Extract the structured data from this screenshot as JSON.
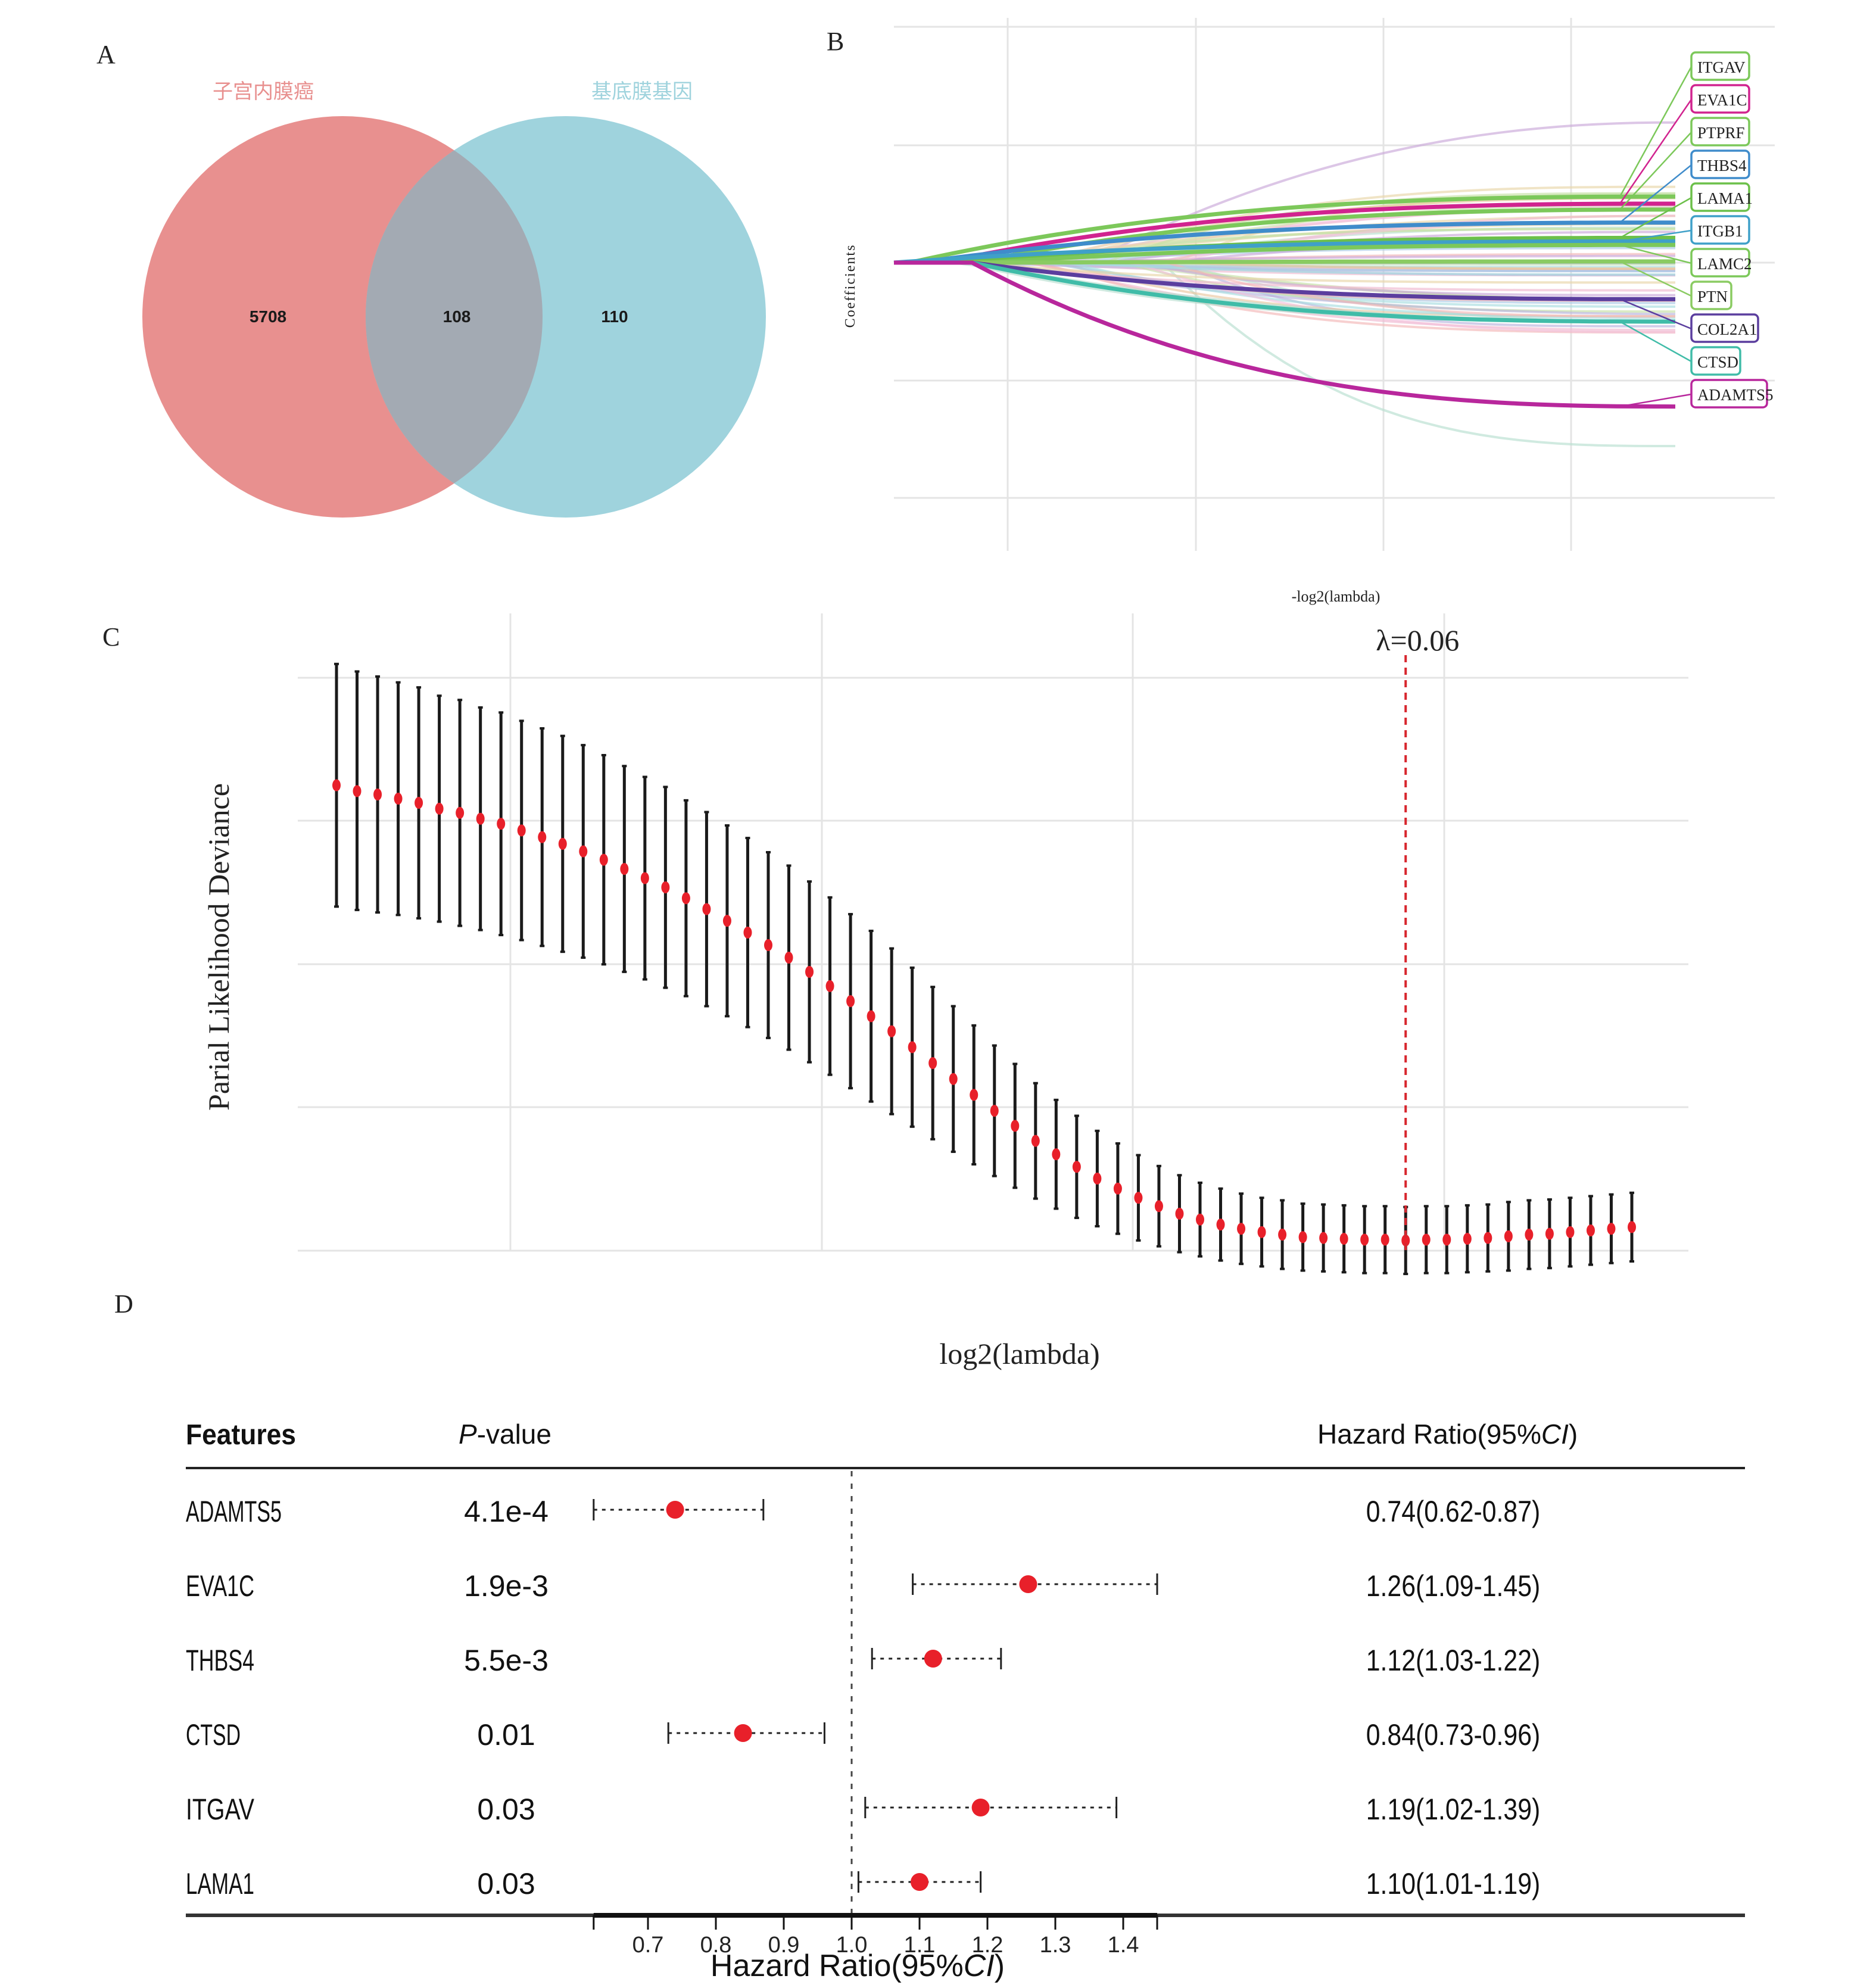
{
  "panels": {
    "a": {
      "label": "A"
    },
    "b": {
      "label": "B"
    },
    "c": {
      "label": "C"
    },
    "d": {
      "label": "D"
    }
  },
  "chart_data": [
    {
      "id": "A",
      "type": "venn",
      "sets": [
        {
          "name": "子宫内膜癌",
          "color": "#E8908F",
          "only": 5708
        },
        {
          "name": "基底膜基因",
          "color": "#9FD3DD",
          "only": 110
        }
      ],
      "intersection": 108,
      "intersection_color": "#A3AAB3"
    },
    {
      "id": "B",
      "type": "line",
      "title": "",
      "xlabel": "-log2(lambda)",
      "ylabel": "Coefficients",
      "grid": true,
      "labels_position": "right",
      "highlighted_genes": [
        {
          "name": "ITGAV",
          "color": "#7CC85A",
          "end": 0.56
        },
        {
          "name": "EVA1C",
          "color": "#D1238F",
          "end": 0.5
        },
        {
          "name": "PTPRF",
          "color": "#7CC85A",
          "end": 0.45
        },
        {
          "name": "THBS4",
          "color": "#3F8CCB",
          "end": 0.34
        },
        {
          "name": "LAMA1",
          "color": "#6CC04A",
          "end": 0.21
        },
        {
          "name": "ITGB1",
          "color": "#3FA0C8",
          "end": 0.18
        },
        {
          "name": "LAMC2",
          "color": "#7CC85A",
          "end": 0.15
        },
        {
          "name": "PTN",
          "color": "#8ACB62",
          "end": 0.01
        },
        {
          "name": "COL2A1",
          "color": "#5B3E9E",
          "end": -0.31
        },
        {
          "name": "CTSD",
          "color": "#40BCA8",
          "end": -0.5
        },
        {
          "name": "ADAMTS5",
          "color": "#B8279C",
          "end": -1.22
        }
      ]
    },
    {
      "id": "C",
      "type": "errorbar",
      "xlabel": "log2(lambda)",
      "ylabel": "Parial Likelihood Deviance",
      "grid": true,
      "annotation": "λ=0.06",
      "vline_index": 52,
      "point_color": "#E8202A",
      "y_relative": {
        "mean": [
          0.69,
          0.683,
          0.679,
          0.674,
          0.669,
          0.662,
          0.657,
          0.65,
          0.644,
          0.636,
          0.628,
          0.62,
          0.611,
          0.601,
          0.59,
          0.579,
          0.568,
          0.555,
          0.542,
          0.528,
          0.514,
          0.499,
          0.484,
          0.467,
          0.45,
          0.432,
          0.414,
          0.396,
          0.377,
          0.358,
          0.339,
          0.32,
          0.301,
          0.283,
          0.265,
          0.249,
          0.234,
          0.22,
          0.208,
          0.197,
          0.187,
          0.178,
          0.171,
          0.165,
          0.16,
          0.156,
          0.153,
          0.15,
          0.149,
          0.148,
          0.147,
          0.147,
          0.146,
          0.147,
          0.147,
          0.148,
          0.149,
          0.151,
          0.153,
          0.154,
          0.156,
          0.158,
          0.16,
          0.162
        ],
        "lower": [
          0.545,
          0.541,
          0.538,
          0.535,
          0.531,
          0.527,
          0.522,
          0.517,
          0.511,
          0.505,
          0.498,
          0.491,
          0.484,
          0.476,
          0.467,
          0.458,
          0.448,
          0.438,
          0.426,
          0.414,
          0.401,
          0.388,
          0.374,
          0.359,
          0.344,
          0.328,
          0.312,
          0.297,
          0.282,
          0.267,
          0.252,
          0.237,
          0.223,
          0.209,
          0.196,
          0.184,
          0.173,
          0.163,
          0.154,
          0.146,
          0.139,
          0.132,
          0.127,
          0.122,
          0.118,
          0.115,
          0.112,
          0.11,
          0.109,
          0.108,
          0.107,
          0.107,
          0.106,
          0.107,
          0.107,
          0.108,
          0.109,
          0.11,
          0.112,
          0.113,
          0.115,
          0.117,
          0.119,
          0.121
        ],
        "upper": [
          0.835,
          0.826,
          0.82,
          0.813,
          0.807,
          0.797,
          0.792,
          0.783,
          0.777,
          0.767,
          0.758,
          0.749,
          0.738,
          0.726,
          0.713,
          0.7,
          0.688,
          0.672,
          0.658,
          0.642,
          0.627,
          0.61,
          0.594,
          0.575,
          0.556,
          0.536,
          0.516,
          0.495,
          0.472,
          0.449,
          0.426,
          0.403,
          0.379,
          0.357,
          0.334,
          0.314,
          0.295,
          0.277,
          0.262,
          0.248,
          0.235,
          0.224,
          0.215,
          0.208,
          0.202,
          0.197,
          0.194,
          0.19,
          0.189,
          0.188,
          0.187,
          0.187,
          0.186,
          0.187,
          0.187,
          0.188,
          0.189,
          0.192,
          0.194,
          0.195,
          0.197,
          0.199,
          0.201,
          0.203
        ]
      }
    },
    {
      "id": "D",
      "type": "forest",
      "headers": {
        "features": "Features",
        "pvalue_italic": "P",
        "pvalue_rest": "-value",
        "hr": "Hazard Ratio(95%",
        "hr_italic": "CI",
        "hr_close": ")"
      },
      "xlabel_prefix": "Hazard Ratio(95%",
      "xlabel_italic": "CI",
      "xlabel_suffix": ")",
      "reference_line": 1.0,
      "xlim": [
        0.62,
        1.45
      ],
      "x_ticks": [
        "0.7",
        "0.8",
        "0.9",
        "1.0",
        "1.1",
        "1.2",
        "1.3",
        "1.4"
      ],
      "x_tick_values": [
        0.7,
        0.8,
        0.9,
        1.0,
        1.1,
        1.2,
        1.3,
        1.4
      ],
      "point_color": "#E8202A",
      "rows": [
        {
          "feature": "ADAMTS5",
          "pvalue": "4.1e-4",
          "hr": 0.74,
          "lo": 0.62,
          "hi": 0.87,
          "hr_text": "0.74(0.62-0.87)"
        },
        {
          "feature": "EVA1C",
          "pvalue": "1.9e-3",
          "hr": 1.26,
          "lo": 1.09,
          "hi": 1.45,
          "hr_text": "1.26(1.09-1.45)"
        },
        {
          "feature": "THBS4",
          "pvalue": "5.5e-3",
          "hr": 1.12,
          "lo": 1.03,
          "hi": 1.22,
          "hr_text": "1.12(1.03-1.22)"
        },
        {
          "feature": "CTSD",
          "pvalue": "0.01",
          "hr": 0.84,
          "lo": 0.73,
          "hi": 0.96,
          "hr_text": "0.84(0.73-0.96)"
        },
        {
          "feature": "ITGAV",
          "pvalue": "0.03",
          "hr": 1.19,
          "lo": 1.02,
          "hi": 1.39,
          "hr_text": "1.19(1.02-1.39)"
        },
        {
          "feature": "LAMA1",
          "pvalue": "0.03",
          "hr": 1.1,
          "lo": 1.01,
          "hi": 1.19,
          "hr_text": "1.10(1.01-1.19)"
        }
      ]
    }
  ]
}
